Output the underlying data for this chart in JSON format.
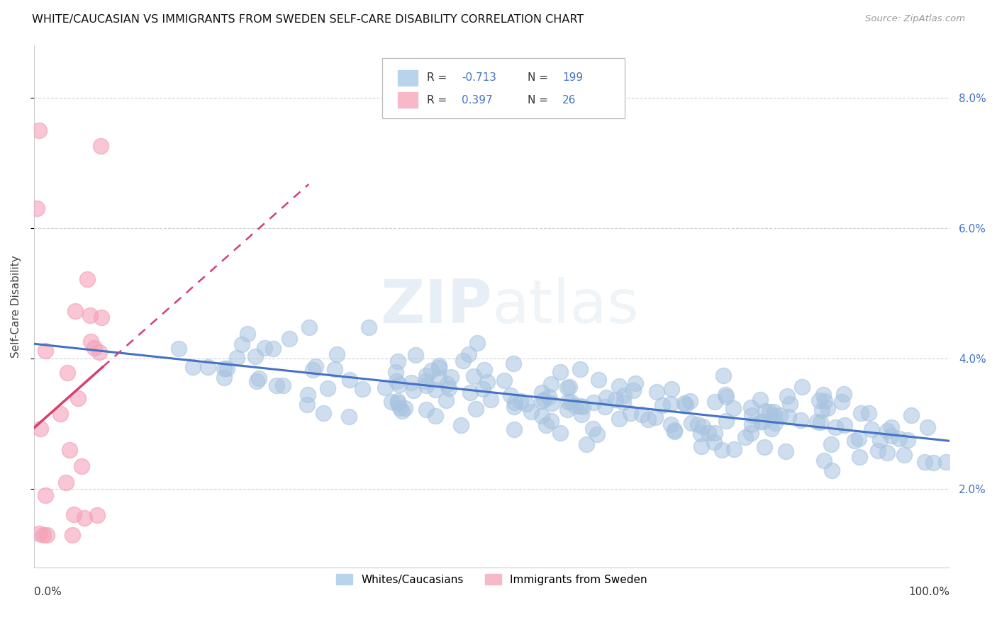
{
  "title": "WHITE/CAUCASIAN VS IMMIGRANTS FROM SWEDEN SELF-CARE DISABILITY CORRELATION CHART",
  "source": "Source: ZipAtlas.com",
  "ylabel": "Self-Care Disability",
  "y_ticks": [
    0.02,
    0.04,
    0.06,
    0.08
  ],
  "y_tick_labels": [
    "2.0%",
    "4.0%",
    "6.0%",
    "8.0%"
  ],
  "xlim": [
    0.0,
    1.0
  ],
  "ylim": [
    0.008,
    0.088
  ],
  "blue_R": -0.713,
  "blue_N": 199,
  "pink_R": 0.397,
  "pink_N": 26,
  "blue_scatter_color": "#a8c4e0",
  "blue_line_color": "#4472c4",
  "pink_scatter_color": "#f4a0b8",
  "pink_line_color": "#d44070",
  "background_color": "#ffffff",
  "grid_color": "#cccccc",
  "legend_label_blue": "Whites/Caucasians",
  "legend_label_pink": "Immigrants from Sweden",
  "watermark_zip": "ZIP",
  "watermark_atlas": "atlas",
  "title_fontsize": 11.5,
  "source_fontsize": 9.5,
  "axis_tick_fontsize": 11
}
